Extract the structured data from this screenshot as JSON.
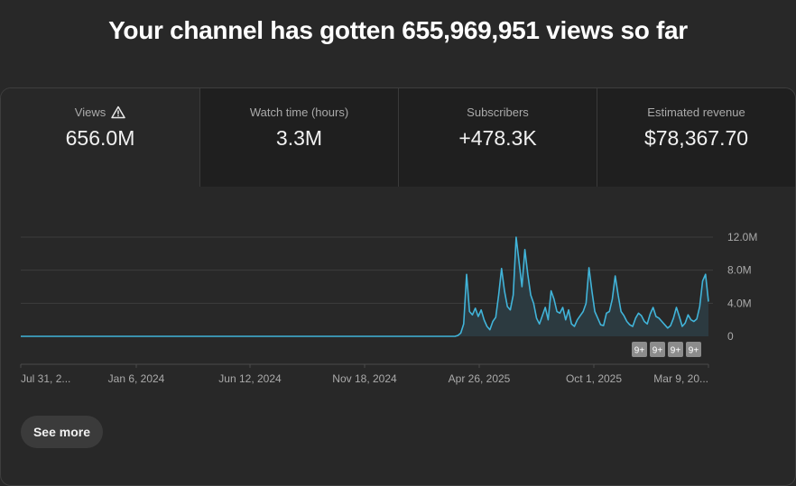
{
  "header": {
    "title": "Your channel has gotten 655,969,951 views so far"
  },
  "tabs": [
    {
      "label": "Views",
      "value": "656.0M",
      "warning": true
    },
    {
      "label": "Watch time (hours)",
      "value": "3.3M"
    },
    {
      "label": "Subscribers",
      "value": "+478.3K"
    },
    {
      "label": "Estimated revenue",
      "value": "$78,367.70"
    }
  ],
  "chart_data": {
    "type": "area",
    "series": [
      {
        "values": [
          0,
          0,
          0,
          0,
          0,
          0,
          0,
          0,
          0,
          0,
          0,
          0,
          0,
          0,
          0,
          0,
          0,
          0,
          0,
          0,
          0,
          0,
          0,
          0,
          0,
          0,
          0,
          0,
          0,
          0,
          0,
          0,
          0,
          0,
          0,
          0,
          0,
          0,
          0,
          0,
          0,
          0,
          0,
          0,
          0,
          0,
          0,
          0,
          0,
          0,
          0,
          0,
          0,
          0,
          0,
          0,
          0,
          0,
          0,
          0,
          0,
          0,
          0,
          0,
          0,
          0,
          0,
          0,
          0,
          0,
          0,
          0,
          0,
          0,
          0,
          0,
          0,
          0,
          0,
          0,
          0,
          0,
          0,
          0,
          0,
          0,
          0,
          0,
          0,
          0,
          0,
          0,
          0,
          0,
          0,
          0,
          0,
          0,
          0,
          0,
          0,
          0,
          0,
          0,
          0,
          0,
          0,
          0,
          0,
          0,
          0,
          0,
          0,
          0,
          0,
          0,
          0,
          0,
          0,
          0,
          0,
          0,
          0,
          0,
          0,
          0,
          0,
          0,
          0,
          0,
          0,
          0,
          0,
          0,
          0,
          0,
          0,
          0,
          0,
          0,
          0,
          0,
          0,
          0,
          0,
          0,
          0,
          0,
          0,
          0,
          0.1,
          0.4,
          1.5,
          7.5,
          3,
          2.6,
          3.4,
          2.4,
          3.2,
          2,
          1.2,
          0.8,
          1.8,
          2.3,
          5,
          8.2,
          5.5,
          3.6,
          3.2,
          5,
          12,
          9,
          6,
          10.5,
          7.5,
          5,
          4,
          2.2,
          1.5,
          2.5,
          3.5,
          2,
          5.5,
          4.5,
          3,
          2.8,
          3.5,
          2,
          3.2,
          1.5,
          1.2,
          2,
          2.5,
          3,
          4,
          8.3,
          5.5,
          3,
          2.2,
          1.4,
          1.3,
          2.8,
          3,
          4.5,
          7.3,
          5,
          3,
          2.5,
          1.8,
          1.4,
          1.2,
          2.2,
          2.8,
          2.5,
          1.8,
          1.5,
          2.7,
          3.5,
          2.4,
          2.2,
          1.8,
          1.4,
          1,
          1.3,
          2.2,
          3.5,
          2.4,
          1.2,
          1.6,
          2.6,
          2,
          1.8,
          2.1,
          3.6,
          6.7,
          7.5,
          4.2
        ]
      }
    ],
    "x_tick_labels": [
      "Jul 31, 2...",
      "Jan 6, 2024",
      "Jun 12, 2024",
      "Nov 18, 2024",
      "Apr 26, 2025",
      "Oct 1, 2025",
      "Mar 9, 20..."
    ],
    "y_tick_labels": [
      "12.0M",
      "8.0M",
      "4.0M",
      "0"
    ],
    "ylim": [
      0,
      12
    ],
    "y_unit": "M",
    "grid": true,
    "annotation_markers": [
      "9+",
      "9+",
      "9+",
      "9+"
    ],
    "line_color": "#41b4d9",
    "fill_color": "#2c3a40"
  },
  "footer": {
    "see_more_label": "See more"
  }
}
